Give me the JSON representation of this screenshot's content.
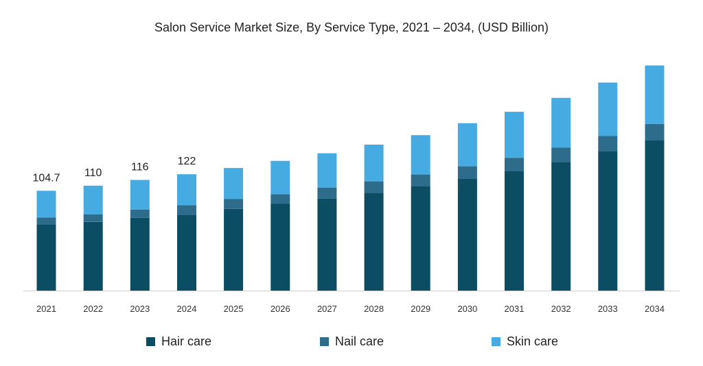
{
  "chart_data": {
    "type": "bar",
    "stacked": true,
    "title": "Salon Service Market Size, By Service Type, 2021 – 2034, (USD Billion)",
    "xlabel": "",
    "ylabel": "",
    "categories": [
      "2021",
      "2022",
      "2023",
      "2024",
      "2025",
      "2026",
      "2027",
      "2028",
      "2029",
      "2030",
      "2031",
      "2032",
      "2033",
      "2034"
    ],
    "series": [
      {
        "name": "Hair care",
        "color": "#0b4d63",
        "values": [
          69.4,
          72.0,
          76.3,
          79.6,
          85.6,
          90.9,
          96.8,
          102.6,
          109.2,
          117.1,
          125.0,
          134.9,
          146.1,
          157.3
        ]
      },
      {
        "name": "Nail care",
        "color": "#2e6c8c",
        "values": [
          7.2,
          8.0,
          8.7,
          9.9,
          10.3,
          10.2,
          11.0,
          11.9,
          12.5,
          13.2,
          14.2,
          15.1,
          15.9,
          17.4
        ]
      },
      {
        "name": "Skin care",
        "color": "#46abe0",
        "values": [
          28.1,
          30.0,
          31.0,
          32.5,
          32.6,
          34.9,
          36.2,
          38.5,
          41.2,
          45.2,
          48.2,
          52.0,
          56.0,
          61.3
        ]
      }
    ],
    "data_labels": [
      "104.7",
      "110",
      "116",
      "122",
      "",
      "",
      "",
      "",
      "",
      "",
      "",
      "",
      "",
      ""
    ],
    "ylim": [
      0,
      250
    ],
    "grid": false,
    "legend_position": "bottom"
  }
}
